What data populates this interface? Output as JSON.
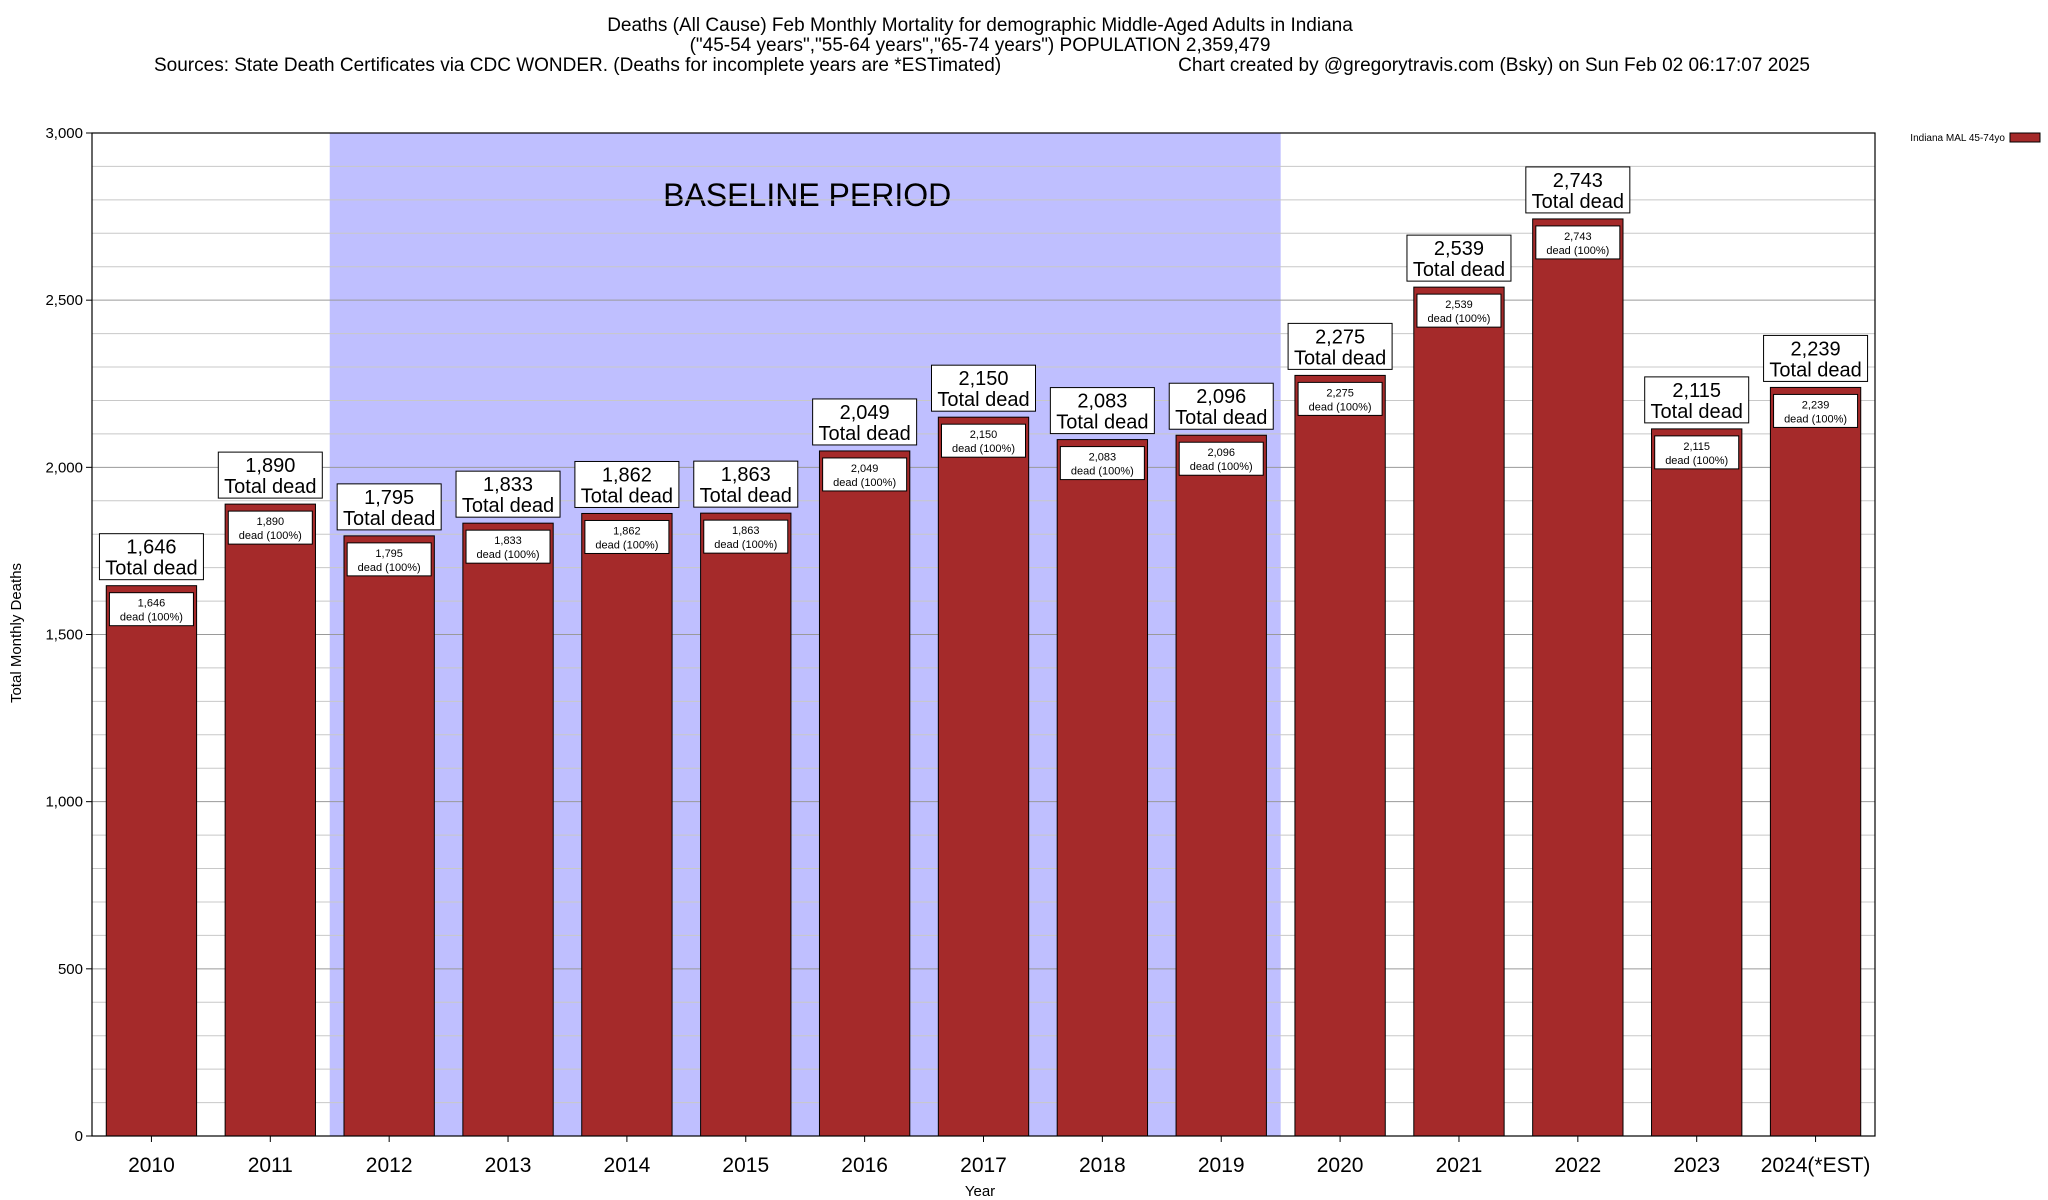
{
  "header": {
    "title_line1": "Deaths (All Cause) Feb Monthly Mortality for demographic Middle-Aged Adults in Indiana",
    "title_line2": "(\"45-54 years\",\"55-64 years\",\"65-74 years\") POPULATION 2,359,479",
    "sources": "Sources: State Death Certificates via CDC WONDER. (Deaths for incomplete years are *ESTimated)",
    "credit": "Chart created by @gregorytravis.com (Bsky) on Sun Feb 02 06:17:07 2025"
  },
  "chart_data": {
    "type": "bar",
    "xlabel": "Year",
    "ylabel": "Total Monthly Deaths",
    "ylim": [
      0,
      3000
    ],
    "y_ticks": [
      0,
      500,
      1000,
      1500,
      2000,
      2500,
      3000
    ],
    "y_tick_labels": [
      "0",
      "500",
      "1,000",
      "1,500",
      "2,000",
      "2,500",
      "3,000"
    ],
    "grid": true,
    "categories": [
      "2010",
      "2011",
      "2012",
      "2013",
      "2014",
      "2015",
      "2016",
      "2017",
      "2018",
      "2019",
      "2020",
      "2021",
      "2022",
      "2023",
      "2024(*EST)"
    ],
    "series": [
      {
        "name": "Indiana MAL 45-74yo",
        "color": "#a52a2a",
        "values": [
          1646,
          1890,
          1795,
          1833,
          1862,
          1863,
          2049,
          2150,
          2083,
          2096,
          2275,
          2539,
          2743,
          2115,
          2239
        ],
        "value_labels": [
          "1,646",
          "1,890",
          "1,795",
          "1,833",
          "1,862",
          "1,863",
          "2,049",
          "2,150",
          "2,083",
          "2,096",
          "2,275",
          "2,539",
          "2,743",
          "2,115",
          "2,239"
        ]
      }
    ],
    "total_label": "Total dead",
    "inner_label": "dead (100%)",
    "shaded_region": {
      "label": "BASELINE PERIOD",
      "from_category": "2012",
      "to_category": "2019",
      "color": "#bfbfff"
    },
    "legend": {
      "position": "top-right",
      "label": "Indiana MAL 45-74yo"
    }
  }
}
